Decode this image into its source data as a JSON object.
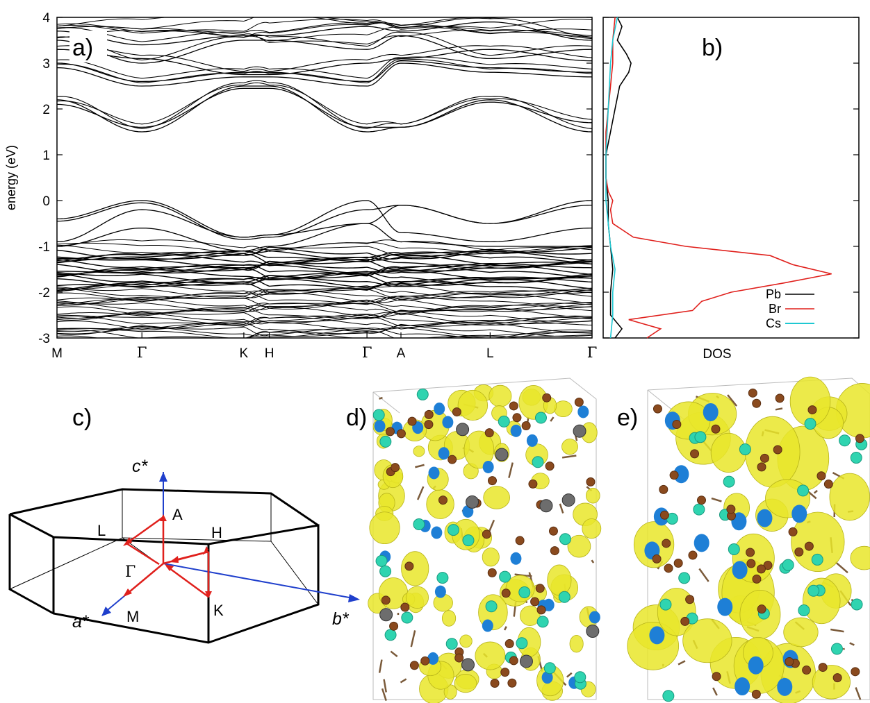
{
  "figure": {
    "panel_labels": [
      "a)",
      "b)",
      "c)",
      "d)",
      "e)"
    ]
  },
  "chart_data": [
    {
      "type": "line",
      "panel": "a)",
      "title": "",
      "xlabel": "",
      "ylabel": "energy (eV)",
      "ylim": [
        -3,
        4
      ],
      "yticks": [
        -3,
        -2,
        -1,
        0,
        1,
        2,
        3,
        4
      ],
      "x_points": [
        "M",
        "Γ",
        "K",
        "H",
        "Γ",
        "A",
        "L",
        "Γ"
      ],
      "x_positions": [
        0,
        1,
        2.2,
        2.5,
        3.65,
        4.05,
        5.1,
        6.3
      ],
      "bands_conduction": [
        {
          "name": "",
          "values": [
            2.2,
            1.5,
            2.5,
            2.5,
            1.5,
            1.6,
            2.2,
            1.5
          ]
        },
        {
          "name": "",
          "values": [
            2.1,
            1.6,
            2.45,
            2.45,
            1.6,
            1.6,
            2.15,
            1.7
          ]
        },
        {
          "name": "",
          "values": [
            2.9,
            2.5,
            2.7,
            2.7,
            2.5,
            3.0,
            2.8,
            2.7
          ]
        },
        {
          "name": "",
          "values": [
            3.0,
            2.6,
            2.8,
            2.8,
            2.6,
            3.05,
            2.9,
            2.8
          ]
        },
        {
          "name": "",
          "values": [
            3.3,
            3.1,
            2.75,
            2.75,
            3.0,
            3.1,
            3.3,
            3.05
          ]
        },
        {
          "name": "",
          "values": [
            3.5,
            3.0,
            3.5,
            3.5,
            3.3,
            3.6,
            3.1,
            3.3
          ]
        },
        {
          "name": "",
          "values": [
            3.7,
            3.4,
            3.6,
            3.6,
            3.8,
            3.7,
            3.9,
            3.5
          ]
        }
      ],
      "bands_valence": [
        {
          "name": "",
          "values": [
            -0.4,
            0.0,
            -0.8,
            -0.75,
            -0.5,
            -0.1,
            -0.5,
            0.0
          ]
        },
        {
          "name": "",
          "values": [
            -0.45,
            -0.05,
            -0.85,
            -0.8,
            -0.2,
            -0.1,
            -0.5,
            -0.1
          ]
        },
        {
          "name": "",
          "values": [
            -0.9,
            -0.2,
            -0.8,
            -0.75,
            0.0,
            -0.7,
            -0.9,
            -0.6
          ]
        },
        {
          "name": "",
          "values": [
            -1.0,
            -0.6,
            -1.1,
            -1.0,
            -0.5,
            -0.9,
            -1.0,
            -1.0
          ]
        }
      ],
      "valence_manifold_range": [
        -3,
        -1
      ]
    },
    {
      "type": "line",
      "panel": "b)",
      "title": "",
      "xlabel": "DOS",
      "ylabel": "",
      "ylim": [
        -3,
        4
      ],
      "series": [
        {
          "name": "Pb",
          "color": "#000000",
          "y": [
            -3,
            -2.8,
            -2.5,
            -2.0,
            -1.5,
            -1.0,
            -0.5,
            0.0,
            0.5,
            1.0,
            1.5,
            2.0,
            2.5,
            2.8,
            3.0,
            3.2,
            3.5,
            3.8,
            4.0
          ],
          "values": [
            0.04,
            0.07,
            0.02,
            0.02,
            0.03,
            0.02,
            0.01,
            0.01,
            0.0,
            0.0,
            0.02,
            0.04,
            0.06,
            0.1,
            0.11,
            0.09,
            0.05,
            0.07,
            0.05
          ]
        },
        {
          "name": "Br",
          "color": "#e0201c",
          "y": [
            -3,
            -2.8,
            -2.6,
            -2.4,
            -2.2,
            -2.0,
            -1.8,
            -1.6,
            -1.4,
            -1.2,
            -1.0,
            -0.8,
            -0.5,
            -0.2,
            0.0,
            0.2,
            0.5,
            1.0,
            1.5,
            2.0,
            2.5,
            3.0,
            3.5,
            4.0
          ],
          "values": [
            0.18,
            0.24,
            0.1,
            0.38,
            0.42,
            0.55,
            0.78,
            0.99,
            0.82,
            0.72,
            0.35,
            0.12,
            0.03,
            0.02,
            0.03,
            0.01,
            0.0,
            0.0,
            0.0,
            0.01,
            0.02,
            0.03,
            0.03,
            0.04
          ]
        },
        {
          "name": "Cs",
          "color": "#1ec8d2",
          "y": [
            -3,
            -2.5,
            -2.0,
            -1.5,
            -1.0,
            -0.5,
            0.0,
            1.0,
            2.0,
            3.0,
            3.5,
            4.0
          ],
          "values": [
            0.02,
            0.03,
            0.03,
            0.04,
            0.02,
            0.01,
            0.0,
            0.0,
            0.01,
            0.02,
            0.03,
            0.05
          ]
        }
      ],
      "legend_position": "bottom-right"
    }
  ],
  "bz_panel": {
    "axes": [
      "c*",
      "a*",
      "b*"
    ],
    "points": [
      "Γ",
      "A",
      "L",
      "H",
      "M",
      "K"
    ]
  },
  "colors": {
    "path": "#e0201c",
    "reciprocal_axes": "#1f3fcc",
    "isosurface": "#e9e62a",
    "isosurface_inner": "#1e7fd6",
    "cs_atom": "#2fd4b0",
    "br_atom": "#8a4a1e",
    "pb_atom": "#6d6d6d"
  }
}
